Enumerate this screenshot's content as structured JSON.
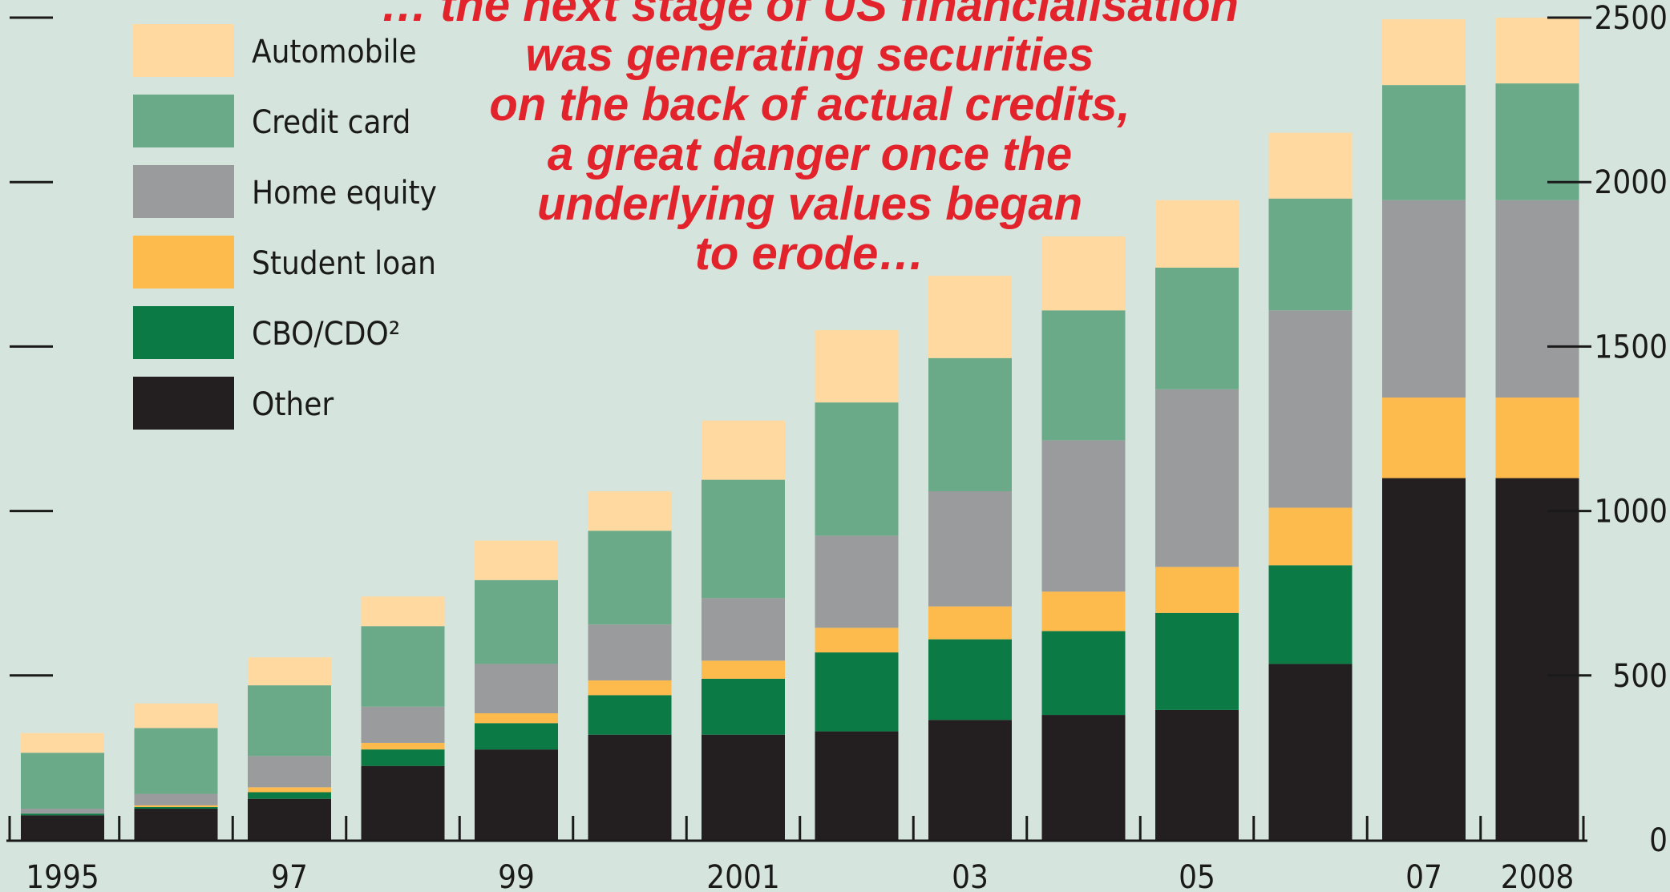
{
  "headline": [
    "… the next stage of US financialisation",
    "was generating securities",
    "on the back of actual credits,",
    "a great danger once the",
    "underlying values began",
    "to erode…"
  ],
  "colors": {
    "background": "#d5e4dc",
    "headline": "#e3232b",
    "Automobile": "#ffd9a0",
    "Credit card": "#6aaa88",
    "Home equity": "#9a9b9d",
    "Student loan": "#fdbb4e",
    "CBO/CDO²": "#0b7a45",
    "Other": "#231f20"
  },
  "chart_data": {
    "type": "bar",
    "stacked": true,
    "categories": [
      "1995",
      "1996",
      "1997",
      "1998",
      "1999",
      "2000",
      "2001",
      "2002",
      "2003",
      "2004",
      "2005",
      "2006",
      "2007",
      "2008"
    ],
    "x_tick_labels": [
      "1995",
      "",
      "97",
      "",
      "99",
      "",
      "2001",
      "",
      "03",
      "",
      "05",
      "",
      "07",
      "2008"
    ],
    "y_ticks": [
      "0",
      "500",
      "1000",
      "1500",
      "2000",
      "2500"
    ],
    "ylim": [
      0,
      2500
    ],
    "grid": false,
    "legend_position": "top-left",
    "series": [
      {
        "name": "Other",
        "values": [
          75,
          95,
          125,
          225,
          275,
          320,
          320,
          330,
          365,
          380,
          395,
          535,
          1100,
          1100
        ]
      },
      {
        "name": "CBO/CDO²",
        "values": [
          5,
          5,
          20,
          50,
          80,
          120,
          170,
          240,
          245,
          255,
          295,
          300,
          0,
          0
        ]
      },
      {
        "name": "Student loan",
        "values": [
          0,
          5,
          15,
          20,
          30,
          45,
          55,
          75,
          100,
          120,
          140,
          175,
          245,
          245
        ]
      },
      {
        "name": "Home equity",
        "values": [
          15,
          35,
          95,
          110,
          150,
          170,
          190,
          280,
          350,
          460,
          540,
          600,
          600,
          600
        ]
      },
      {
        "name": "Credit card",
        "values": [
          170,
          200,
          215,
          245,
          255,
          285,
          360,
          405,
          405,
          395,
          370,
          340,
          350,
          355
        ]
      },
      {
        "name": "Automobile",
        "values": [
          60,
          75,
          85,
          90,
          120,
          120,
          180,
          220,
          250,
          225,
          205,
          200,
          200,
          200
        ]
      }
    ]
  }
}
